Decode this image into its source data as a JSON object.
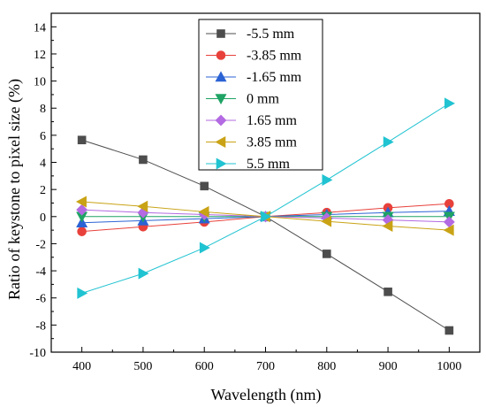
{
  "chart_data": {
    "type": "line",
    "title": "",
    "xlabel": "Wavelength (nm)",
    "ylabel": "Ratio of keystone to pixel size (%)",
    "xlim": [
      350,
      1050
    ],
    "ylim": [
      -10,
      15
    ],
    "x": [
      400,
      500,
      600,
      700,
      800,
      900,
      1000
    ],
    "x_ticks": [
      "400",
      "500",
      "600",
      "700",
      "800",
      "900",
      "1000"
    ],
    "y_ticks": [
      "-10",
      "-8",
      "-6",
      "-4",
      "-2",
      "0",
      "2",
      "4",
      "6",
      "8",
      "10",
      "12",
      "14"
    ],
    "legend_position": "top-center",
    "grid": false,
    "series": [
      {
        "name": "-5.5 mm",
        "marker": "square",
        "color": "#4d4d4d",
        "values": [
          5.65,
          4.2,
          2.25,
          0.0,
          -2.75,
          -5.55,
          -8.4
        ]
      },
      {
        "name": "-3.85 mm",
        "marker": "circle",
        "color": "#e8413b",
        "values": [
          -1.1,
          -0.75,
          -0.4,
          0.0,
          0.3,
          0.65,
          0.95
        ]
      },
      {
        "name": "-1.65 mm",
        "marker": "triangle-up",
        "color": "#2b63d4",
        "values": [
          -0.45,
          -0.3,
          -0.15,
          0.0,
          0.15,
          0.3,
          0.4
        ]
      },
      {
        "name": "0 mm",
        "marker": "triangle-down",
        "color": "#1fa364",
        "values": [
          0.0,
          0.0,
          0.0,
          0.0,
          0.0,
          0.0,
          0.0
        ]
      },
      {
        "name": "1.65 mm",
        "marker": "diamond",
        "color": "#b36ae2",
        "values": [
          0.5,
          0.3,
          0.15,
          0.0,
          -0.1,
          -0.25,
          -0.4
        ]
      },
      {
        "name": "3.85 mm",
        "marker": "triangle-left",
        "color": "#c9a315",
        "values": [
          1.1,
          0.75,
          0.35,
          0.0,
          -0.35,
          -0.7,
          -1.0
        ]
      },
      {
        "name": "5.5 mm",
        "marker": "triangle-right",
        "color": "#20c3d1",
        "values": [
          -5.65,
          -4.2,
          -2.3,
          0.0,
          2.7,
          5.5,
          8.35
        ]
      }
    ]
  }
}
